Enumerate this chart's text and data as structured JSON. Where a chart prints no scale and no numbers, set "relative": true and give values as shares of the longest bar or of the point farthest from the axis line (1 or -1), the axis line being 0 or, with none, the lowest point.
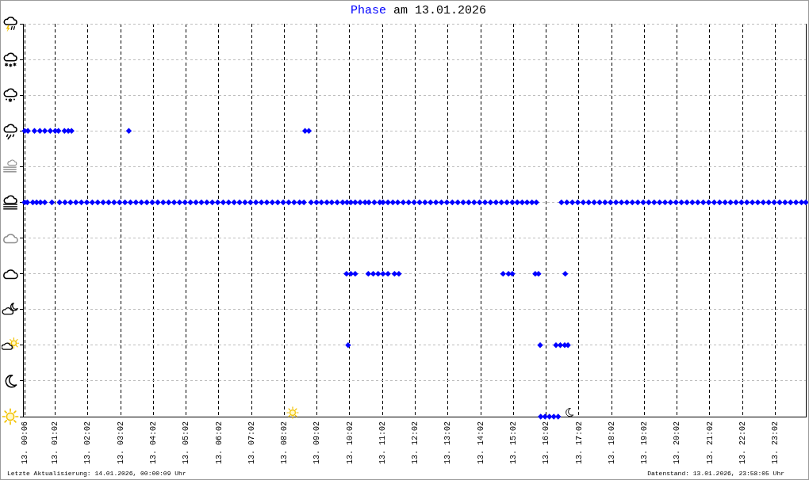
{
  "chart_data": {
    "type": "scatter",
    "title": "Phase am 13.01.2026",
    "annotations": [
      "Letzte Aktualisierung: 14.01.2026, 00:00:09 Uhr",
      "Datenstand: 13.01.2026, 23:58:05 Uhr"
    ],
    "x": [
      "2026-01-13T00:06",
      "2026-01-13T00:11",
      "2026-01-13T00:21",
      "2026-01-13T00:28",
      "2026-01-13T00:35",
      "2026-01-13T00:43",
      "2026-01-13T00:56",
      "2026-01-13T01:10",
      "2026-01-13T01:20",
      "2026-01-13T01:30",
      "2026-01-13T01:40",
      "2026-01-13T01:50",
      "2026-01-13T02:00",
      "2026-01-13T02:10",
      "2026-01-13T02:20",
      "2026-01-13T02:30",
      "2026-01-13T02:40",
      "2026-01-13T02:50",
      "2026-01-13T03:00",
      "2026-01-13T03:10",
      "2026-01-13T03:20",
      "2026-01-13T03:30",
      "2026-01-13T03:40",
      "2026-01-13T03:50",
      "2026-01-13T04:00",
      "2026-01-13T04:10",
      "2026-01-13T04:20",
      "2026-01-13T04:30",
      "2026-01-13T04:40",
      "2026-01-13T04:50",
      "2026-01-13T05:00",
      "2026-01-13T05:10",
      "2026-01-13T05:20",
      "2026-01-13T05:30",
      "2026-01-13T05:40",
      "2026-01-13T05:50",
      "2026-01-13T06:00",
      "2026-01-13T06:10",
      "2026-01-13T06:20",
      "2026-01-13T06:30",
      "2026-01-13T06:40",
      "2026-01-13T06:50",
      "2026-01-13T07:00",
      "2026-01-13T07:10",
      "2026-01-13T07:20",
      "2026-01-13T07:30",
      "2026-01-13T07:40",
      "2026-01-13T07:50",
      "2026-01-13T08:00",
      "2026-01-13T08:10",
      "2026-01-13T08:20",
      "2026-01-13T08:30",
      "2026-01-13T08:38",
      "2026-01-13T08:51",
      "2026-01-13T09:01",
      "2026-01-13T09:10",
      "2026-01-13T09:20",
      "2026-01-13T09:29",
      "2026-01-13T09:39",
      "2026-01-13T09:49",
      "2026-01-13T09:57",
      "2026-01-13T10:04",
      "2026-01-13T10:12",
      "2026-01-13T10:21",
      "2026-01-13T10:30",
      "2026-01-13T10:37",
      "2026-01-13T10:47",
      "2026-01-13T10:57",
      "2026-01-13T11:03",
      "2026-01-13T11:12",
      "2026-01-13T11:21",
      "2026-01-13T11:30",
      "2026-01-13T11:40",
      "2026-01-13T11:50",
      "2026-01-13T12:00",
      "2026-01-13T12:10",
      "2026-01-13T12:20",
      "2026-01-13T12:30",
      "2026-01-13T12:40",
      "2026-01-13T12:50",
      "2026-01-13T13:00",
      "2026-01-13T13:10",
      "2026-01-13T13:20",
      "2026-01-13T13:30",
      "2026-01-13T13:40",
      "2026-01-13T13:50",
      "2026-01-13T14:00",
      "2026-01-13T14:10",
      "2026-01-13T14:20",
      "2026-01-13T14:30",
      "2026-01-13T14:40",
      "2026-01-13T14:50",
      "2026-01-13T15:00",
      "2026-01-13T15:09",
      "2026-01-13T15:18",
      "2026-01-13T15:27",
      "2026-01-13T15:36",
      "2026-01-13T15:44",
      "2026-01-13T16:30",
      "2026-01-13T16:40",
      "2026-01-13T16:50",
      "2026-01-13T17:00",
      "2026-01-13T17:10",
      "2026-01-13T17:20",
      "2026-01-13T17:30",
      "2026-01-13T17:40",
      "2026-01-13T17:50",
      "2026-01-13T18:00",
      "2026-01-13T18:10",
      "2026-01-13T18:20",
      "2026-01-13T18:30",
      "2026-01-13T18:40",
      "2026-01-13T18:50",
      "2026-01-13T19:00",
      "2026-01-13T19:10",
      "2026-01-13T19:20",
      "2026-01-13T19:30",
      "2026-01-13T19:40",
      "2026-01-13T19:50",
      "2026-01-13T20:00",
      "2026-01-13T20:10",
      "2026-01-13T20:20",
      "2026-01-13T20:30",
      "2026-01-13T20:40",
      "2026-01-13T20:50",
      "2026-01-13T21:00",
      "2026-01-13T21:10",
      "2026-01-13T21:20",
      "2026-01-13T21:30",
      "2026-01-13T21:40",
      "2026-01-13T21:50",
      "2026-01-13T22:00",
      "2026-01-13T22:10",
      "2026-01-13T22:20",
      "2026-01-13T22:30",
      "2026-01-13T22:40",
      "2026-01-13T22:50",
      "2026-01-13T23:00",
      "2026-01-13T23:10",
      "2026-01-13T23:20",
      "2026-01-13T23:30",
      "2026-01-13T23:40",
      "2026-01-13T23:50",
      "2026-01-13T23:58",
      "2026-01-13T00:06",
      "2026-01-13T00:12",
      "2026-01-13T00:24",
      "2026-01-13T00:34",
      "2026-01-13T00:43",
      "2026-01-13T00:53",
      "2026-01-13T01:02",
      "2026-01-13T01:08",
      "2026-01-13T01:19",
      "2026-01-13T01:26",
      "2026-01-13T01:32",
      "2026-01-13T03:17",
      "2026-01-13T08:40",
      "2026-01-13T08:47",
      "2026-01-13T09:56",
      "2026-01-13T10:04",
      "2026-01-13T10:12",
      "2026-01-13T10:36",
      "2026-01-13T10:45",
      "2026-01-13T10:54",
      "2026-01-13T11:03",
      "2026-01-13T11:12",
      "2026-01-13T11:24",
      "2026-01-13T11:32",
      "2026-01-13T14:43",
      "2026-01-13T14:53",
      "2026-01-13T15:00",
      "2026-01-13T15:42",
      "2026-01-13T15:48",
      "2026-01-13T16:37",
      "2026-01-13T09:59",
      "2026-01-13T15:51",
      "2026-01-13T16:20",
      "2026-01-13T16:28",
      "2026-01-13T16:36",
      "2026-01-13T16:42",
      "2026-01-13T15:52",
      "2026-01-13T16:00",
      "2026-01-13T16:08",
      "2026-01-13T16:16",
      "2026-01-13T16:24"
    ],
    "values": [
      0.75,
      0.75,
      0.75,
      0.75,
      0.75,
      0.75,
      0.75,
      0.75,
      0.75,
      0.75,
      0.75,
      0.75,
      0.75,
      0.75,
      0.75,
      0.75,
      0.75,
      0.75,
      0.75,
      0.75,
      0.75,
      0.75,
      0.75,
      0.75,
      0.75,
      0.75,
      0.75,
      0.75,
      0.75,
      0.75,
      0.75,
      0.75,
      0.75,
      0.75,
      0.75,
      0.75,
      0.75,
      0.75,
      0.75,
      0.75,
      0.75,
      0.75,
      0.75,
      0.75,
      0.75,
      0.75,
      0.75,
      0.75,
      0.75,
      0.75,
      0.75,
      0.75,
      0.75,
      0.75,
      0.75,
      0.75,
      0.75,
      0.75,
      0.75,
      0.75,
      0.75,
      0.75,
      0.75,
      0.75,
      0.75,
      0.75,
      0.75,
      0.75,
      0.75,
      0.75,
      0.75,
      0.75,
      0.75,
      0.75,
      0.75,
      0.75,
      0.75,
      0.75,
      0.75,
      0.75,
      0.75,
      0.75,
      0.75,
      0.75,
      0.75,
      0.75,
      0.75,
      0.75,
      0.75,
      0.75,
      0.75,
      0.75,
      0.75,
      0.75,
      0.75,
      0.75,
      0.75,
      0.75,
      0.75,
      0.75,
      0.75,
      0.75,
      0.75,
      0.75,
      0.75,
      0.75,
      0.75,
      0.75,
      0.75,
      0.75,
      0.75,
      0.75,
      0.75,
      0.75,
      0.75,
      0.75,
      0.75,
      0.75,
      0.75,
      0.75,
      0.75,
      0.75,
      0.75,
      0.75,
      0.75,
      0.75,
      0.75,
      0.75,
      0.75,
      0.75,
      0.75,
      0.75,
      0.75,
      0.75,
      0.75,
      0.75,
      0.75,
      0.75,
      0.75,
      0.75,
      0.75,
      0.75,
      0.75,
      0.75,
      1,
      1,
      1,
      1,
      1,
      1,
      1,
      1,
      1,
      1,
      1,
      1,
      1,
      1,
      0.5,
      0.5,
      0.5,
      0.5,
      0.5,
      0.5,
      0.5,
      0.5,
      0.5,
      0.5,
      0.5,
      0.5,
      0.5,
      0.5,
      0.5,
      0.5,
      0.25,
      0.25,
      0.25,
      0.25,
      0.25,
      0.25,
      0,
      0,
      0,
      0,
      0
    ],
    "relative": true,
    "color": "#0000ff",
    "marker": "diamond",
    "xlim": [
      "2026-01-13T00:03",
      "2026-01-13T23:58"
    ],
    "xticks": [
      {
        "value": "2026-01-13T00:06",
        "label": "13. 00:06"
      },
      {
        "value": "2026-01-13T01:02",
        "label": "13. 01:02"
      },
      {
        "value": "2026-01-13T02:02",
        "label": "13. 02:02"
      },
      {
        "value": "2026-01-13T03:02",
        "label": "13. 03:02"
      },
      {
        "value": "2026-01-13T04:02",
        "label": "13. 04:02"
      },
      {
        "value": "2026-01-13T05:02",
        "label": "13. 05:02"
      },
      {
        "value": "2026-01-13T06:02",
        "label": "13. 06:02"
      },
      {
        "value": "2026-01-13T07:02",
        "label": "13. 07:02"
      },
      {
        "value": "2026-01-13T08:02",
        "label": "13. 08:02"
      },
      {
        "value": "2026-01-13T09:02",
        "label": "13. 09:02"
      },
      {
        "value": "2026-01-13T10:02",
        "label": "13. 10:02"
      },
      {
        "value": "2026-01-13T11:02",
        "label": "13. 11:02"
      },
      {
        "value": "2026-01-13T12:02",
        "label": "13. 12:02"
      },
      {
        "value": "2026-01-13T13:02",
        "label": "13. 13:02"
      },
      {
        "value": "2026-01-13T14:02",
        "label": "13. 14:02"
      },
      {
        "value": "2026-01-13T15:02",
        "label": "13. 15:02"
      },
      {
        "value": "2026-01-13T16:02",
        "label": "13. 16:02"
      },
      {
        "value": "2026-01-13T17:02",
        "label": "13. 17:02"
      },
      {
        "value": "2026-01-13T18:02",
        "label": "13. 18:02"
      },
      {
        "value": "2026-01-13T19:02",
        "label": "13. 19:02"
      },
      {
        "value": "2026-01-13T20:02",
        "label": "13. 20:02"
      },
      {
        "value": "2026-01-13T21:02",
        "label": "13. 21:02"
      },
      {
        "value": "2026-01-13T22:02",
        "label": "13. 22:02"
      },
      {
        "value": "2026-01-13T23:02",
        "label": "13. 23:02"
      }
    ],
    "grid": true,
    "tick_labels": "x"
  }
}
